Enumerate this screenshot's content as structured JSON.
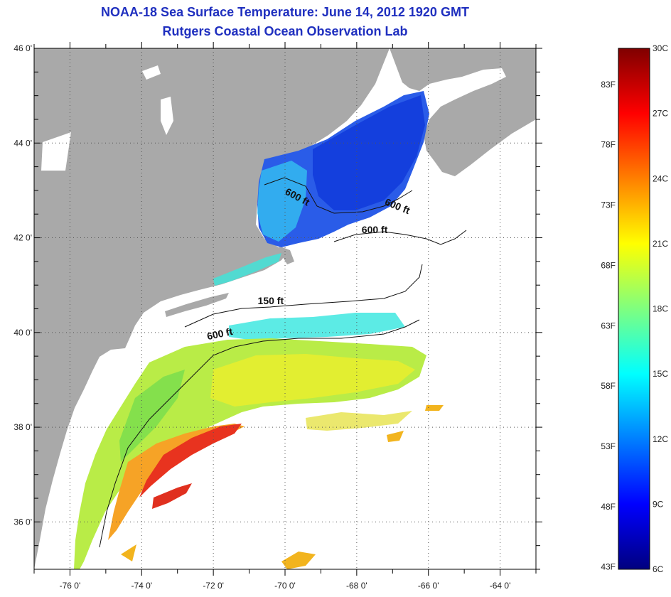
{
  "title": {
    "line1": "NOAA-18 Sea Surface Temperature:  June 14, 2012 1920 GMT",
    "line2": "Rutgers Coastal Ocean Observation Lab"
  },
  "map": {
    "lon_range": [
      -77,
      -63
    ],
    "lat_range": [
      35,
      46
    ],
    "lon_ticks": [
      "-76 0'",
      "-74 0'",
      "-72 0'",
      "-70 0'",
      "-68 0'",
      "-66 0'",
      "-64 0'"
    ],
    "lat_ticks": [
      "46 0'",
      "44 0'",
      "42 0'",
      "40 0'",
      "38 0'",
      "36 0'"
    ],
    "grid": "dotted",
    "land_color": "#a9a9a9",
    "no_data_color": "#ffffff",
    "contour_labels": [
      {
        "text": "600 ft",
        "lon": -69.7,
        "lat": 42.8
      },
      {
        "text": "600 ft",
        "lon": -66.9,
        "lat": 42.6
      },
      {
        "text": "600 ft",
        "lon": -67.5,
        "lat": 42.1
      },
      {
        "text": "150 ft",
        "lon": -70.4,
        "lat": 40.6
      },
      {
        "text": "600 ft",
        "lon": -71.8,
        "lat": 39.9
      }
    ]
  },
  "colorbar": {
    "celsius_labels": [
      "30C",
      "27C",
      "24C",
      "21C",
      "18C",
      "15C",
      "12C",
      "9C",
      "6C"
    ],
    "fahrenheit_labels": [
      "83F",
      "78F",
      "73F",
      "68F",
      "63F",
      "58F",
      "53F",
      "48F",
      "43F"
    ],
    "range_c": [
      6,
      30
    ],
    "colormap": [
      "#00007f",
      "#0000ff",
      "#007fff",
      "#00ffff",
      "#7fff7f",
      "#ffff00",
      "#ff7f00",
      "#ff0000",
      "#7f0000"
    ]
  }
}
